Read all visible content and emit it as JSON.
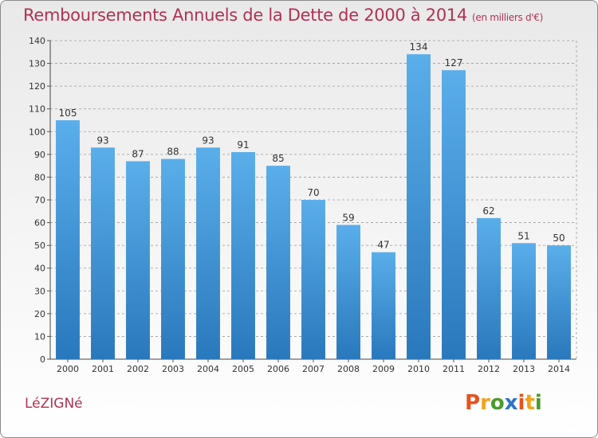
{
  "header": {
    "title": "Remboursements Annuels de la Dette de 2000 à 2014",
    "unit": "(en milliers d'€)"
  },
  "footer": {
    "commune": "LéZIGNé",
    "brand": "Proxiti"
  },
  "colors": {
    "title": "#b03252",
    "bar_top": "#5aaeea",
    "bar_bottom": "#2a78bc",
    "grid": "#9a9a9a",
    "logo": [
      "#e8521f",
      "#f3a21b",
      "#4a9a2e",
      "#2a73c8",
      "#e8521f",
      "#f3a21b",
      "#4a9a2e"
    ]
  },
  "chart_data": {
    "type": "bar",
    "title": "Remboursements Annuels de la Dette de 2000 à 2014",
    "categories": [
      "2000",
      "2001",
      "2002",
      "2003",
      "2004",
      "2005",
      "2006",
      "2007",
      "2008",
      "2009",
      "2010",
      "2011",
      "2012",
      "2013",
      "2014"
    ],
    "values": [
      105,
      93,
      87,
      88,
      93,
      91,
      85,
      70,
      59,
      47,
      134,
      127,
      62,
      51,
      50
    ],
    "xlabel": "",
    "ylabel": "",
    "ylim": [
      0,
      140
    ],
    "yticks": [
      0,
      10,
      20,
      30,
      40,
      50,
      60,
      70,
      80,
      90,
      100,
      110,
      120,
      130,
      140
    ],
    "grid": true,
    "legend": "none"
  }
}
